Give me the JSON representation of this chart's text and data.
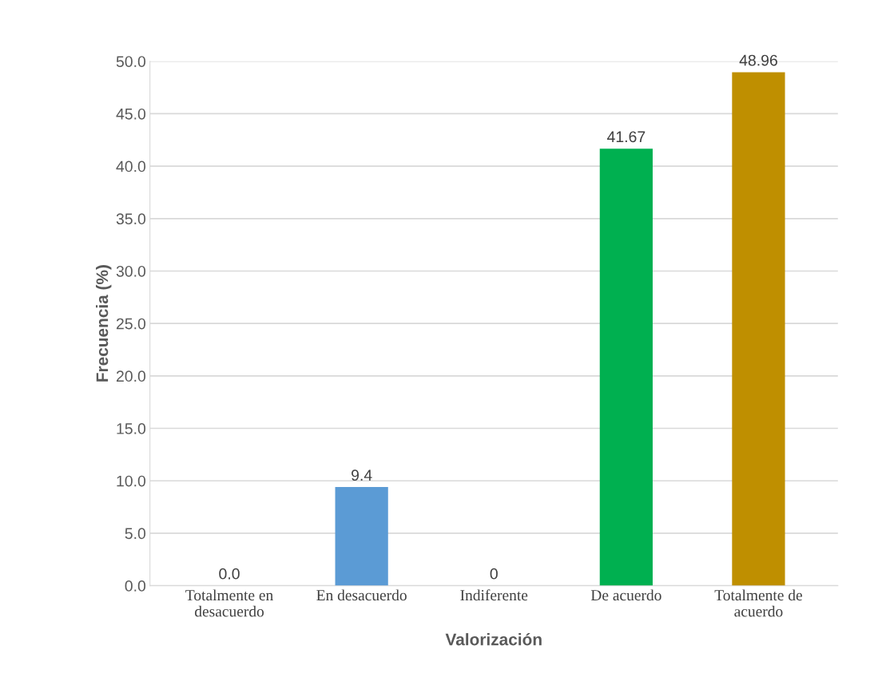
{
  "chart_data": {
    "type": "bar",
    "xlabel": "Valorización",
    "ylabel": "Frecuencia (%)",
    "categories": [
      "Totalmente en\ndesacuerdo",
      "En desacuerdo",
      "Indiferente",
      "De acuerdo",
      "Totalmente de\nacuerdo"
    ],
    "values": [
      0,
      9.4,
      0,
      41.67,
      48.96
    ],
    "colors": [
      "#990000",
      "#5b9bd5",
      "#c9c400",
      "#00b050",
      "#bf8f00"
    ],
    "value_labels": [
      "0.0",
      "9.4",
      "0",
      "41.67",
      "48.96"
    ],
    "ylim": [
      0,
      50
    ],
    "yticks": [
      {
        "value": 0,
        "label": "0.0"
      },
      {
        "value": 5,
        "label": "5.0"
      },
      {
        "value": 10,
        "label": "10.0"
      },
      {
        "value": 15,
        "label": "15.0"
      },
      {
        "value": 20,
        "label": "20.0"
      },
      {
        "value": 25,
        "label": "25.0"
      },
      {
        "value": 30,
        "label": "30.0"
      },
      {
        "value": 35,
        "label": "35.0"
      },
      {
        "value": 40,
        "label": "40.0"
      },
      {
        "value": 45,
        "label": "45.0"
      },
      {
        "value": 50,
        "label": "50.0"
      }
    ],
    "grid": "y",
    "legend": false
  }
}
